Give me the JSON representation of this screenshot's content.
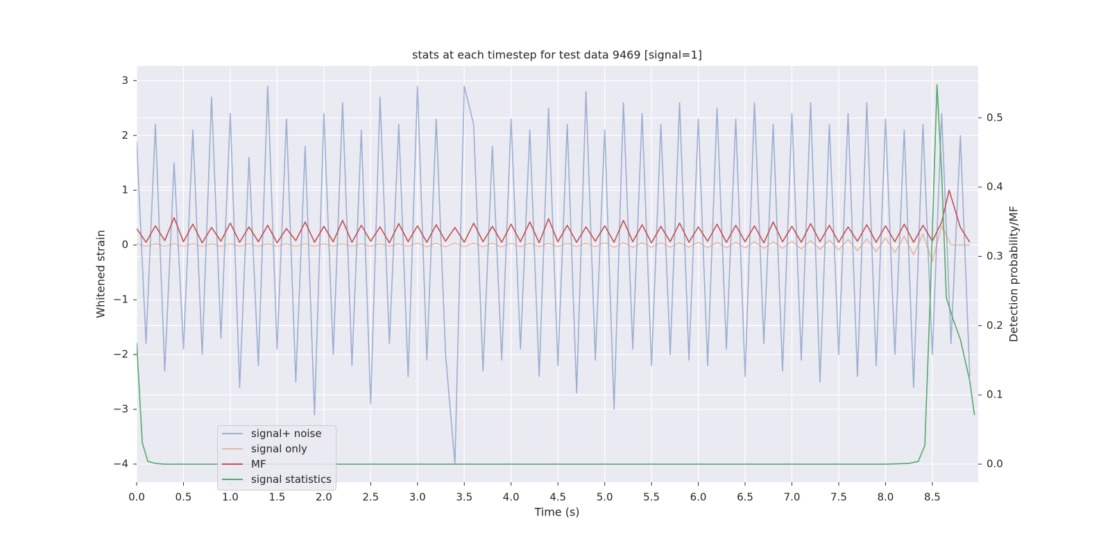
{
  "chart_data": {
    "type": "line",
    "title": "stats at each timestep for test data 9469 [signal=1]",
    "x_label": "Time (s)",
    "y_label": "Whitened strain",
    "y2_label": "Detection probability/MF",
    "xlim": [
      0,
      8.99
    ],
    "ylim": [
      -4.33,
      3.27
    ],
    "y2lim": [
      -0.026,
      0.575
    ],
    "xticks": [
      {
        "value": 0,
        "label": "0.0"
      },
      0.5,
      {
        "value": 1,
        "label": "1.0"
      },
      1.5,
      {
        "value": 2,
        "label": "2.0"
      },
      2.5,
      {
        "value": 3,
        "label": "3.0"
      },
      3.5,
      {
        "value": 4,
        "label": "4.0"
      },
      4.5,
      {
        "value": 5,
        "label": "5.0"
      },
      5.5,
      {
        "value": 6,
        "label": "6.0"
      },
      6.5,
      {
        "value": 7,
        "label": "7.0"
      },
      7.5,
      {
        "value": 8,
        "label": "8.0"
      },
      8.5
    ],
    "yticks": [
      {
        "value": -4,
        "label": "−4"
      },
      {
        "value": -3,
        "label": "−3"
      },
      {
        "value": -2,
        "label": "−2"
      },
      {
        "value": -1,
        "label": "−1"
      },
      0,
      1,
      2,
      3
    ],
    "y2ticks": [
      {
        "value": 0,
        "label": "0.0"
      },
      0.1,
      0.2,
      0.3,
      0.4,
      0.5
    ],
    "grid": true,
    "legend": "lower left",
    "series": [
      {
        "name": "signal+ noise",
        "color": "#4c72b0",
        "opacity": 0.5,
        "x": [
          0,
          0.1,
          0.2,
          0.3,
          0.4,
          0.5,
          0.6,
          0.7,
          0.8,
          0.9,
          1,
          1.1,
          1.2,
          1.3,
          1.4,
          1.5,
          1.6,
          1.7,
          1.8,
          1.9,
          2,
          2.1,
          2.2,
          2.3,
          2.4,
          2.5,
          2.6,
          2.7,
          2.8,
          2.9,
          3,
          3.1,
          3.2,
          3.3,
          3.4,
          3.5,
          3.6,
          3.7,
          3.8,
          3.9,
          4,
          4.1,
          4.2,
          4.3,
          4.4,
          4.5,
          4.6,
          4.7,
          4.8,
          4.9,
          5,
          5.1,
          5.2,
          5.3,
          5.4,
          5.5,
          5.6,
          5.7,
          5.8,
          5.9,
          6,
          6.1,
          6.2,
          6.3,
          6.4,
          6.5,
          6.6,
          6.7,
          6.8,
          6.9,
          7,
          7.1,
          7.2,
          7.3,
          7.4,
          7.5,
          7.6,
          7.7,
          7.8,
          7.9,
          8,
          8.1,
          8.2,
          8.3,
          8.4,
          8.5,
          8.6,
          8.7,
          8.8,
          8.9
        ],
        "values": [
          1.9,
          -1.8,
          2.2,
          -2.3,
          1.5,
          -1.9,
          2.1,
          -2.0,
          2.7,
          -1.7,
          2.4,
          -2.6,
          1.6,
          -2.2,
          2.9,
          -1.9,
          2.3,
          -2.5,
          1.8,
          -3.1,
          2.4,
          -2.0,
          2.6,
          -2.2,
          2.1,
          -2.9,
          2.7,
          -1.8,
          2.2,
          -2.4,
          2.9,
          -2.1,
          2.3,
          -2.0,
          -4.0,
          2.9,
          2.2,
          -2.3,
          1.8,
          -2.1,
          2.3,
          -1.9,
          2.1,
          -2.4,
          2.5,
          -2.2,
          2.2,
          -2.7,
          2.8,
          -2.1,
          2.1,
          -3.0,
          2.6,
          -1.9,
          2.4,
          -2.2,
          2.2,
          -2.0,
          2.6,
          -2.1,
          2.3,
          -2.2,
          2.5,
          -1.9,
          2.3,
          -2.4,
          2.6,
          -1.8,
          2.2,
          -2.3,
          2.4,
          -2.1,
          2.6,
          -2.5,
          2.2,
          -2.0,
          2.4,
          -2.4,
          2.6,
          -2.2,
          2.3,
          -2.0,
          2.1,
          -2.6,
          2.2,
          -2.0,
          2.4,
          -1.8,
          2.0,
          -2.4
        ]
      },
      {
        "name": "signal only",
        "color": "#dd8452",
        "opacity": 0.5,
        "x": [
          0,
          0.1,
          0.2,
          0.3,
          0.4,
          0.5,
          0.6,
          0.7,
          0.8,
          0.9,
          1,
          1.1,
          1.2,
          1.3,
          1.4,
          1.5,
          1.6,
          1.7,
          1.8,
          1.9,
          2,
          2.1,
          2.2,
          2.3,
          2.4,
          2.5,
          2.6,
          2.7,
          2.8,
          2.9,
          3,
          3.1,
          3.2,
          3.3,
          3.4,
          3.5,
          3.6,
          3.7,
          3.8,
          3.9,
          4,
          4.1,
          4.2,
          4.3,
          4.4,
          4.5,
          4.6,
          4.7,
          4.8,
          4.9,
          5,
          5.1,
          5.2,
          5.3,
          5.4,
          5.5,
          5.6,
          5.7,
          5.8,
          5.9,
          6,
          6.1,
          6.2,
          6.3,
          6.4,
          6.5,
          6.6,
          6.7,
          6.8,
          6.9,
          7,
          7.1,
          7.2,
          7.3,
          7.4,
          7.5,
          7.6,
          7.7,
          7.8,
          7.9,
          8,
          8.1,
          8.2,
          8.3,
          8.4,
          8.5,
          8.6,
          8.7,
          8.8,
          8.9
        ],
        "values": [
          0.02,
          -0.02,
          0.02,
          -0.02,
          0.02,
          -0.02,
          0.02,
          -0.02,
          0.02,
          -0.02,
          0.02,
          -0.02,
          0.02,
          -0.02,
          0.02,
          -0.02,
          0.02,
          -0.02,
          0.02,
          -0.02,
          0.02,
          -0.02,
          0.02,
          -0.02,
          0.02,
          -0.02,
          0.02,
          -0.02,
          0.02,
          -0.02,
          0.03,
          -0.03,
          0.03,
          -0.03,
          0.03,
          -0.03,
          0.03,
          -0.03,
          0.03,
          -0.03,
          0.03,
          -0.03,
          0.03,
          -0.03,
          0.03,
          -0.03,
          0.03,
          -0.03,
          0.03,
          -0.03,
          0.04,
          -0.04,
          0.04,
          -0.04,
          0.04,
          -0.04,
          0.04,
          -0.04,
          0.04,
          -0.04,
          0.05,
          -0.05,
          0.05,
          -0.05,
          0.05,
          -0.05,
          0.06,
          -0.06,
          0.06,
          -0.06,
          0.07,
          -0.07,
          0.08,
          -0.08,
          0.09,
          -0.09,
          0.1,
          -0.1,
          0.11,
          -0.12,
          0.13,
          -0.14,
          0.16,
          -0.18,
          0.2,
          -0.3,
          0.35,
          0.0,
          0.0,
          0.0
        ]
      },
      {
        "name": "MF",
        "color": "#c44e52",
        "opacity": 1,
        "x": [
          0,
          0.1,
          0.2,
          0.3,
          0.4,
          0.5,
          0.6,
          0.7,
          0.8,
          0.9,
          1,
          1.1,
          1.2,
          1.3,
          1.4,
          1.5,
          1.6,
          1.7,
          1.8,
          1.9,
          2,
          2.1,
          2.2,
          2.3,
          2.4,
          2.5,
          2.6,
          2.7,
          2.8,
          2.9,
          3,
          3.1,
          3.2,
          3.3,
          3.4,
          3.5,
          3.6,
          3.7,
          3.8,
          3.9,
          4,
          4.1,
          4.2,
          4.3,
          4.4,
          4.5,
          4.6,
          4.7,
          4.8,
          4.9,
          5,
          5.1,
          5.2,
          5.3,
          5.4,
          5.5,
          5.6,
          5.7,
          5.8,
          5.9,
          6,
          6.1,
          6.2,
          6.3,
          6.4,
          6.5,
          6.6,
          6.7,
          6.8,
          6.9,
          7,
          7.1,
          7.2,
          7.3,
          7.4,
          7.5,
          7.6,
          7.7,
          7.8,
          7.9,
          8,
          8.1,
          8.2,
          8.3,
          8.4,
          8.5,
          8.6,
          8.68,
          8.8,
          8.9
        ],
        "values": [
          0.3,
          0.05,
          0.35,
          0.08,
          0.5,
          0.06,
          0.38,
          0.04,
          0.32,
          0.07,
          0.4,
          0.05,
          0.33,
          0.06,
          0.36,
          0.04,
          0.3,
          0.08,
          0.42,
          0.05,
          0.34,
          0.06,
          0.45,
          0.05,
          0.36,
          0.07,
          0.33,
          0.04,
          0.39,
          0.06,
          0.35,
          0.05,
          0.37,
          0.07,
          0.32,
          0.05,
          0.4,
          0.06,
          0.34,
          0.05,
          0.38,
          0.06,
          0.42,
          0.04,
          0.48,
          0.06,
          0.36,
          0.05,
          0.33,
          0.07,
          0.35,
          0.05,
          0.45,
          0.06,
          0.37,
          0.04,
          0.34,
          0.06,
          0.4,
          0.05,
          0.33,
          0.07,
          0.38,
          0.05,
          0.36,
          0.06,
          0.35,
          0.04,
          0.42,
          0.06,
          0.34,
          0.05,
          0.39,
          0.06,
          0.36,
          0.05,
          0.33,
          0.07,
          0.37,
          0.05,
          0.35,
          0.06,
          0.38,
          0.05,
          0.36,
          0.07,
          0.42,
          1.0,
          0.32,
          0.05
        ]
      },
      {
        "name": "signal statistics",
        "color": "#55a868",
        "opacity": 1,
        "axis": "y2",
        "x": [
          0,
          0.06,
          0.12,
          0.2,
          0.3,
          0.5,
          1,
          2,
          3,
          4,
          5,
          6,
          7,
          8,
          8.25,
          8.35,
          8.42,
          8.48,
          8.55,
          8.6,
          8.65,
          8.72,
          8.8,
          8.9,
          8.95
        ],
        "values": [
          0.175,
          0.031,
          0.004,
          0.001,
          0.0,
          0.0,
          0.0,
          0.0,
          0.0,
          0.0,
          0.0,
          0.0,
          0.0,
          0.0,
          0.001,
          0.004,
          0.027,
          0.25,
          0.548,
          0.42,
          0.24,
          0.21,
          0.18,
          0.12,
          0.071
        ]
      }
    ]
  }
}
